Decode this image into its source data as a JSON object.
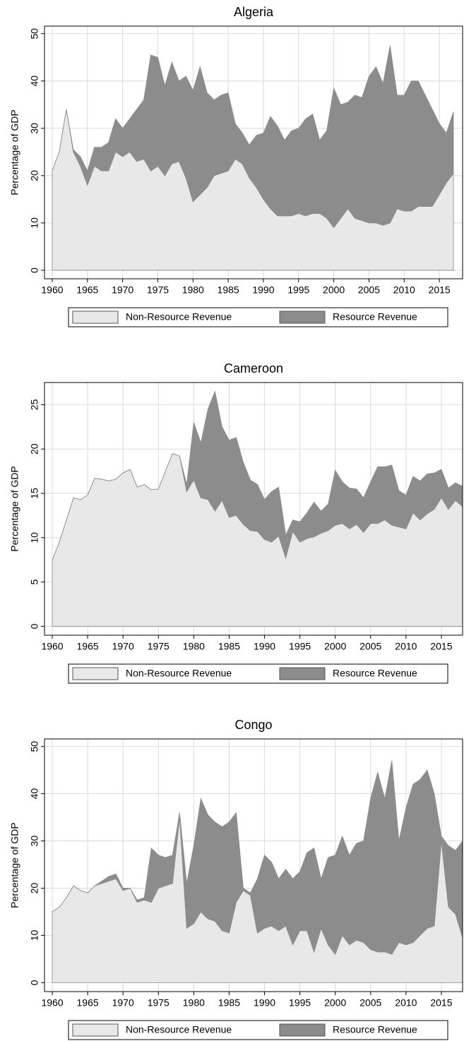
{
  "chart_data": [
    {
      "type": "stacked_area",
      "title": "Algeria",
      "ylabel": "Percentage of GDP",
      "x": [
        1960,
        1961,
        1962,
        1963,
        1964,
        1965,
        1966,
        1967,
        1968,
        1969,
        1970,
        1971,
        1972,
        1973,
        1974,
        1975,
        1976,
        1977,
        1978,
        1979,
        1980,
        1981,
        1982,
        1983,
        1984,
        1985,
        1986,
        1987,
        1988,
        1989,
        1990,
        1991,
        1992,
        1993,
        1994,
        1995,
        1996,
        1997,
        1998,
        1999,
        2000,
        2001,
        2002,
        2003,
        2004,
        2005,
        2006,
        2007,
        2008,
        2009,
        2010,
        2011,
        2012,
        2013,
        2014,
        2015,
        2016,
        2017
      ],
      "series": [
        {
          "name": "Non-Resource Revenue",
          "color": "#e8e8e8",
          "values": [
            21,
            25,
            34,
            25,
            22,
            18,
            22,
            21,
            21,
            25,
            24,
            25,
            23,
            23.5,
            21,
            22,
            20,
            22.5,
            23,
            19.5,
            14.5,
            16,
            17.5,
            20,
            20.5,
            21,
            23.5,
            22.5,
            19.5,
            17.5,
            15,
            13,
            11.5,
            11.5,
            11.5,
            12,
            11.5,
            12,
            12,
            11,
            9,
            11,
            13,
            11,
            10.5,
            10,
            10,
            9.5,
            10,
            13,
            12.5,
            12.5,
            13.5,
            13.5,
            13.5,
            16,
            18.5,
            20.5
          ]
        },
        {
          "name": "Resource Revenue",
          "color": "#8c8c8c",
          "values": [
            0,
            0,
            0,
            0.5,
            2,
            3,
            4,
            5,
            6,
            7,
            6,
            7,
            11,
            12.5,
            24.5,
            23,
            19,
            21.5,
            17,
            21.5,
            23.5,
            27,
            20,
            16,
            16.5,
            16.5,
            7.5,
            6.5,
            7,
            11,
            14,
            19.5,
            19,
            16,
            18,
            18,
            20.5,
            21,
            15.5,
            18.5,
            29.5,
            24,
            22.5,
            26,
            26,
            31,
            33,
            30,
            37.5,
            24,
            24.5,
            27.5,
            26.5,
            23.5,
            20.5,
            15,
            10.5,
            13
          ]
        }
      ],
      "xlim": [
        1958.9,
        2018.3
      ],
      "xticks": [
        1960,
        1965,
        1970,
        1975,
        1980,
        1985,
        1990,
        1995,
        2000,
        2005,
        2010,
        2015
      ],
      "ylim": [
        -1.8,
        51.6
      ],
      "yticks": [
        0,
        10,
        20,
        30,
        40,
        50
      ],
      "grid": true
    },
    {
      "type": "stacked_area",
      "title": "Cameroon",
      "ylabel": "Percentage of GDP",
      "x": [
        1960,
        1961,
        1962,
        1963,
        1964,
        1965,
        1966,
        1967,
        1968,
        1969,
        1970,
        1971,
        1972,
        1973,
        1974,
        1975,
        1976,
        1977,
        1978,
        1979,
        1980,
        1981,
        1982,
        1983,
        1984,
        1985,
        1986,
        1987,
        1988,
        1989,
        1990,
        1991,
        1992,
        1993,
        1994,
        1995,
        1996,
        1997,
        1998,
        1999,
        2000,
        2001,
        2002,
        2003,
        2004,
        2005,
        2006,
        2007,
        2008,
        2009,
        2010,
        2011,
        2012,
        2013,
        2014,
        2015,
        2016,
        2017,
        2018
      ],
      "series": [
        {
          "name": "Non-Resource Revenue",
          "color": "#e8e8e8",
          "values": [
            7.5,
            9.5,
            12,
            14.5,
            14.3,
            14.8,
            16.7,
            16.6,
            16.4,
            16.6,
            17.3,
            17.7,
            15.7,
            16,
            15.4,
            15.5,
            17.5,
            19.5,
            19.2,
            15.2,
            16.5,
            14.5,
            14.3,
            13,
            14.2,
            12.3,
            12.5,
            11.5,
            10.8,
            10.7,
            9.8,
            9.5,
            10.2,
            7.7,
            10.7,
            9.5,
            9.9,
            10.1,
            10.5,
            10.8,
            11.4,
            11.6,
            11,
            11.5,
            10.6,
            11.6,
            11.6,
            12,
            11.4,
            11.2,
            11,
            12.8,
            12,
            12.7,
            13.2,
            14.5,
            13.2,
            14.2,
            13.5
          ]
        },
        {
          "name": "Resource Revenue",
          "color": "#8c8c8c",
          "values": [
            0,
            0,
            0,
            0,
            0,
            0,
            0,
            0,
            0,
            0,
            0,
            0,
            0,
            0,
            0,
            0,
            0,
            0,
            0,
            0.8,
            6.5,
            6.2,
            10.2,
            13.5,
            8.3,
            8.7,
            8.8,
            7,
            5.7,
            5.3,
            4.5,
            5.7,
            5.5,
            2.6,
            1.3,
            2.3,
            2.9,
            3.9,
            2.5,
            3,
            6.2,
            4.7,
            4.6,
            4,
            3.9,
            4.7,
            6.4,
            6,
            6.8,
            4.1,
            3.8,
            4.1,
            4.4,
            4.5,
            4.1,
            3.2,
            2.4,
            2,
            2.3
          ]
        }
      ],
      "xlim": [
        1958.9,
        2018
      ],
      "xticks": [
        1960,
        1965,
        1970,
        1975,
        1980,
        1985,
        1990,
        1995,
        2000,
        2005,
        2010,
        2015
      ],
      "ylim": [
        -1.0,
        27.5
      ],
      "yticks": [
        0,
        5,
        10,
        15,
        20,
        25
      ],
      "grid": true
    },
    {
      "type": "stacked_area",
      "title": "Congo",
      "ylabel": "Percentage of GDP",
      "x": [
        1960,
        1961,
        1962,
        1963,
        1964,
        1965,
        1966,
        1967,
        1968,
        1969,
        1970,
        1971,
        1972,
        1973,
        1974,
        1975,
        1976,
        1977,
        1978,
        1979,
        1980,
        1981,
        1982,
        1983,
        1984,
        1985,
        1986,
        1987,
        1988,
        1989,
        1990,
        1991,
        1992,
        1993,
        1994,
        1995,
        1996,
        1997,
        1998,
        1999,
        2000,
        2001,
        2002,
        2003,
        2004,
        2005,
        2006,
        2007,
        2008,
        2009,
        2010,
        2011,
        2012,
        2013,
        2014,
        2015,
        2016,
        2017,
        2018
      ],
      "series": [
        {
          "name": "Non-Resource Revenue",
          "color": "#e8e8e8",
          "values": [
            15,
            16,
            18,
            20.5,
            19.5,
            19,
            20.5,
            21,
            21.5,
            22,
            19.5,
            20,
            17,
            17.5,
            17,
            20,
            20.5,
            21,
            35,
            11.5,
            12.5,
            15,
            13.5,
            13,
            11,
            10.5,
            17,
            19.5,
            18.5,
            10.5,
            11.5,
            12,
            11,
            12,
            8,
            11,
            11,
            6.5,
            11.5,
            8,
            6,
            10,
            8,
            9,
            8.5,
            7,
            6.5,
            6.5,
            6,
            8.5,
            8,
            8.5,
            10,
            11.5,
            12,
            30,
            16,
            14.5,
            9.5
          ]
        },
        {
          "name": "Resource Revenue",
          "color": "#8c8c8c",
          "values": [
            0,
            0,
            0,
            0,
            0,
            0,
            0,
            0.5,
            1,
            1,
            0.5,
            0,
            0.5,
            0.5,
            11.5,
            7,
            6,
            6,
            1,
            9.5,
            16.5,
            24,
            22,
            21,
            22,
            23.5,
            19,
            0.5,
            0.5,
            11.5,
            15.5,
            13.5,
            11,
            12,
            14,
            12.5,
            16.5,
            22,
            10.5,
            18.5,
            21,
            21,
            19,
            20.5,
            21.5,
            32,
            38,
            32.5,
            41,
            21.5,
            29,
            33.5,
            33,
            33.5,
            28,
            1,
            13,
            13.5,
            20.5
          ]
        }
      ],
      "xlim": [
        1958.9,
        2018
      ],
      "xticks": [
        1960,
        1965,
        1970,
        1975,
        1980,
        1985,
        1990,
        1995,
        2000,
        2005,
        2010,
        2015
      ],
      "ylim": [
        -1.9,
        51.6
      ],
      "yticks": [
        0,
        10,
        20,
        30,
        40,
        50
      ],
      "grid": true
    }
  ]
}
